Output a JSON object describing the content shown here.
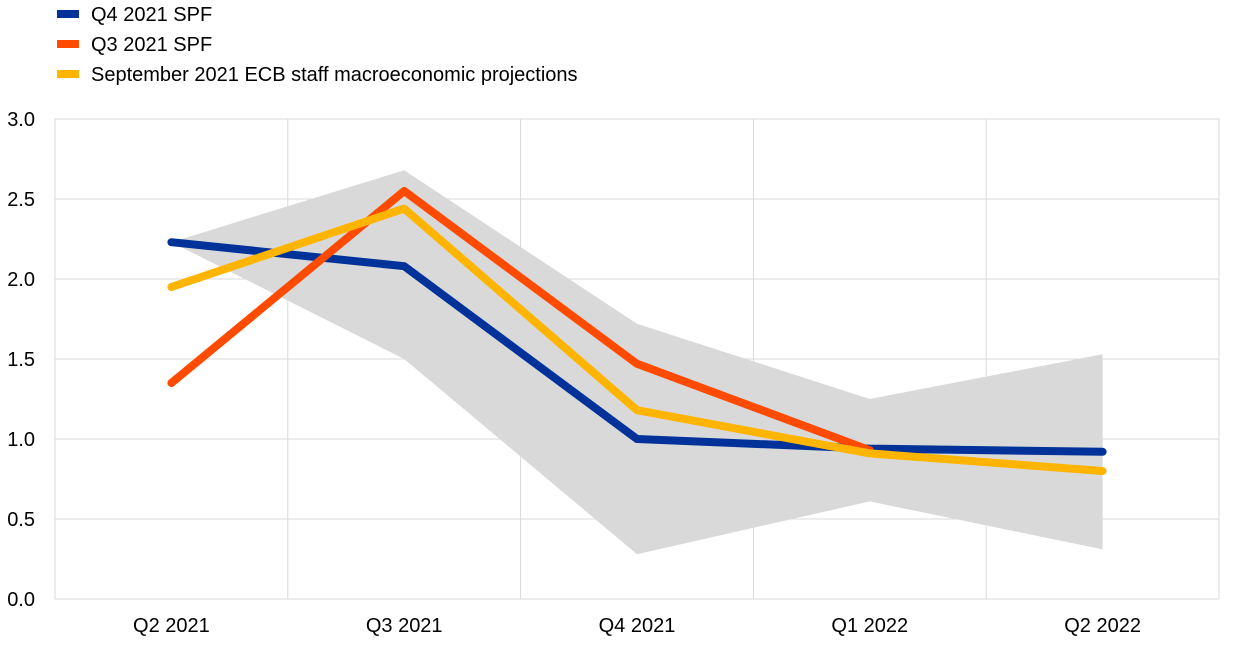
{
  "chart_data": {
    "type": "line",
    "title": "",
    "xlabel": "",
    "ylabel": "",
    "categories": [
      "Q2 2021",
      "Q3 2021",
      "Q4 2021",
      "Q1 2022",
      "Q2 2022"
    ],
    "ylim": [
      0.0,
      3.0
    ],
    "y_ticks": [
      "0.0",
      "0.5",
      "1.0",
      "1.5",
      "2.0",
      "2.5",
      "3.0"
    ],
    "grid": true,
    "legend_position": "top-left",
    "range_band": {
      "color": "#d9d9d9",
      "upper": [
        2.23,
        2.68,
        1.72,
        1.25,
        1.53
      ],
      "lower": [
        2.23,
        1.5,
        0.28,
        0.61,
        0.31
      ]
    },
    "series": [
      {
        "name": "Q4 2021 SPF",
        "color": "#003299",
        "values": [
          2.23,
          2.08,
          1.0,
          0.94,
          0.92
        ]
      },
      {
        "name": "Q3 2021 SPF",
        "color": "#ff4b00",
        "values": [
          1.35,
          2.55,
          1.47,
          0.93,
          null
        ]
      },
      {
        "name": "September 2021 ECB staff macroeconomic projections",
        "color": "#ffb400",
        "values": [
          1.95,
          2.44,
          1.18,
          0.91,
          0.8
        ]
      }
    ]
  }
}
